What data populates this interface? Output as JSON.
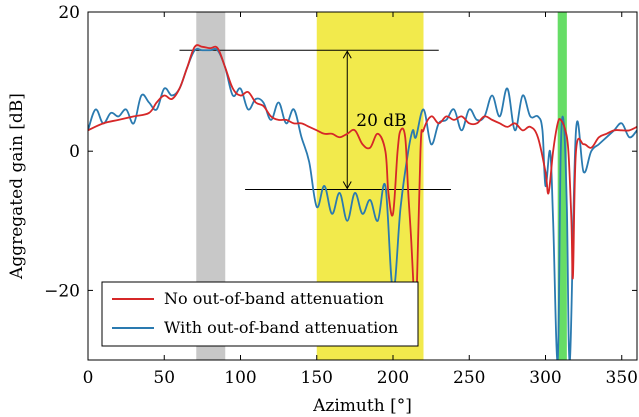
{
  "chart_data": {
    "type": "line",
    "xlabel": "Azimuth [°]",
    "ylabel": "Aggregated gain [dB]",
    "xlim": [
      0,
      360
    ],
    "ylim": [
      -30,
      20
    ],
    "xticks": [
      0,
      50,
      100,
      150,
      200,
      250,
      300,
      350
    ],
    "yticks": [
      -20,
      0,
      20
    ],
    "xtick_labels": [
      "0",
      "50",
      "100",
      "150",
      "200",
      "250",
      "300",
      "350"
    ],
    "ytick_labels": [
      "−20",
      "0",
      "20"
    ],
    "grid": false,
    "legend_position": "bottom-left",
    "shaded_regions": [
      {
        "x0": 71,
        "x1": 90,
        "color": "#c8c8c8"
      },
      {
        "x0": 150,
        "x1": 220,
        "color": "#f2ea4c"
      },
      {
        "x0": 308,
        "x1": 314,
        "color": "#66dd66"
      }
    ],
    "annotation": {
      "text": "20 dB",
      "line_top_y": 14.5,
      "line_bottom_y": -5.5,
      "line_x0": 60,
      "line_x1": 230,
      "arrow_x": 170
    },
    "series": [
      {
        "name": "No out-of-band attenuation",
        "color": "#d62728",
        "x": [
          0,
          10,
          20,
          30,
          40,
          45,
          50,
          55,
          60,
          65,
          70,
          75,
          80,
          85,
          90,
          95,
          100,
          105,
          110,
          115,
          120,
          125,
          130,
          135,
          140,
          145,
          150,
          155,
          160,
          165,
          170,
          175,
          180,
          185,
          190,
          195,
          197,
          200,
          203,
          205,
          208,
          210,
          212,
          214,
          215,
          218,
          220,
          225,
          230,
          235,
          240,
          245,
          250,
          255,
          260,
          265,
          270,
          275,
          280,
          285,
          290,
          295,
          300,
          302,
          305,
          308,
          310,
          313,
          315,
          317,
          318,
          320,
          325,
          330,
          335,
          340,
          345,
          350,
          355,
          360
        ],
        "y": [
          3,
          4,
          4.5,
          5,
          5.5,
          7,
          8,
          7.5,
          9,
          12,
          15,
          15,
          14.8,
          14.8,
          12,
          9,
          8,
          8.5,
          7,
          6.5,
          5,
          4.5,
          4.5,
          4,
          4,
          3.5,
          3,
          2.5,
          2.5,
          2,
          2.5,
          3,
          1,
          0.5,
          2.5,
          0,
          -6,
          -9,
          0,
          3,
          2,
          -6,
          -13,
          -22,
          -25,
          0,
          3,
          5,
          4,
          5,
          4.5,
          5,
          4,
          4,
          5,
          4.5,
          4,
          3.5,
          4,
          3,
          3.5,
          2,
          -3,
          -6,
          0,
          4,
          4.5,
          3,
          0,
          -10,
          -18,
          0,
          1,
          0.5,
          2,
          2.5,
          3,
          3,
          3,
          3.5
        ]
      },
      {
        "name": "With out-of-band attenuation",
        "color": "#2a7ab0",
        "x": [
          0,
          5,
          10,
          15,
          20,
          25,
          30,
          35,
          40,
          45,
          50,
          55,
          60,
          65,
          70,
          75,
          80,
          85,
          90,
          95,
          100,
          105,
          110,
          115,
          120,
          125,
          130,
          135,
          140,
          145,
          150,
          155,
          160,
          165,
          170,
          175,
          180,
          185,
          190,
          195,
          200,
          205,
          210,
          213,
          215,
          220,
          225,
          230,
          235,
          240,
          245,
          250,
          255,
          260,
          265,
          270,
          275,
          280,
          285,
          290,
          295,
          298,
          300,
          303,
          305,
          308,
          310,
          312,
          314,
          316,
          320,
          325,
          330,
          335,
          340,
          345,
          350,
          355,
          360
        ],
        "y": [
          3,
          6,
          4,
          5.5,
          5,
          6,
          4,
          8,
          7,
          6,
          9,
          8,
          9,
          12,
          14.5,
          14.5,
          14.5,
          14.5,
          12,
          8,
          9,
          6,
          7.5,
          7,
          4.5,
          7,
          4,
          6,
          2,
          -1.5,
          -8,
          -5,
          -9,
          -6,
          -10,
          -6,
          -9,
          -7,
          -10,
          -5,
          -20,
          -8,
          0,
          3,
          2,
          6,
          1,
          4,
          4.5,
          6,
          3,
          6,
          4.5,
          5,
          8,
          5,
          9,
          3,
          8,
          5,
          5,
          3,
          -5,
          0,
          -10,
          -30,
          0,
          4,
          -8,
          -30,
          3,
          -3,
          0,
          1,
          2,
          3,
          4,
          2,
          3
        ]
      }
    ]
  }
}
